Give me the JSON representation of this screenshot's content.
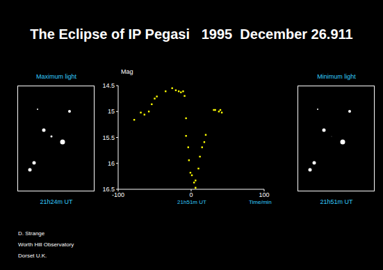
{
  "chart_data": {
    "type": "scatter",
    "title": "The Eclipse of IP Pegasi   1995  December 26.911",
    "ylabel": "Mag",
    "xlabel": "Time/min",
    "annotations": [
      "21h51m UT"
    ],
    "x": [
      -78,
      -69,
      -64,
      -58,
      -54,
      -50,
      -47,
      -35,
      -26,
      -21,
      -17,
      -14,
      -11,
      -9,
      -7,
      -7,
      -4,
      -3,
      -1,
      1,
      4,
      6,
      6,
      10,
      12,
      15,
      18,
      20,
      31,
      33,
      38,
      40,
      42
    ],
    "values": [
      15.16,
      15.02,
      15.06,
      15.0,
      14.86,
      14.75,
      14.71,
      14.61,
      14.55,
      14.59,
      14.61,
      14.63,
      14.61,
      14.7,
      15.13,
      15.47,
      15.69,
      15.94,
      16.18,
      16.23,
      16.37,
      16.33,
      16.47,
      16.1,
      15.87,
      15.69,
      15.59,
      15.45,
      14.97,
      14.97,
      15.0,
      14.97,
      15.02
    ],
    "color": "#ffff00",
    "marker": "square",
    "xlim": [
      -100,
      100
    ],
    "xticks": [
      -100,
      0,
      100
    ],
    "ylim": [
      14.5,
      16.5
    ],
    "yticks": [
      14.5,
      15,
      15.5,
      16,
      16.5
    ]
  },
  "panels": [
    {
      "title": "Maximum light",
      "time": "21h24m UT"
    },
    {
      "title": "Minimum light",
      "time": "21h51m UT"
    }
  ],
  "credits": [
    "D. Strange",
    "Worth Hill Observatory",
    "Dorset U.K."
  ]
}
